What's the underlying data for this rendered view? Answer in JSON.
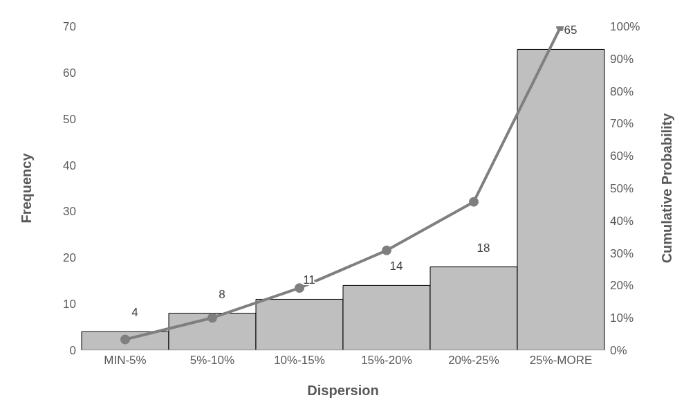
{
  "chart_data": {
    "type": "bar",
    "xlabel": "Dispersion",
    "ylabel": "Frequency",
    "y2label": "Cumulative Probability",
    "categories": [
      "MIN-5%",
      "5%-10%",
      "10%-15%",
      "15%-20%",
      "20%-25%",
      "25%-MORE"
    ],
    "series": [
      {
        "color": "#bfbfbf",
        "values": [
          4,
          8,
          11,
          14,
          18,
          65
        ],
        "value_labels": [
          "4",
          "8",
          "11",
          "14",
          "18",
          "65"
        ]
      },
      {
        "type": "line",
        "axis": "y2",
        "color": "#7f7f7f",
        "values": [
          3.3,
          10,
          19.2,
          30.8,
          45.8,
          100
        ]
      }
    ],
    "ylim": [
      0,
      70
    ],
    "yticks": [
      0,
      10,
      20,
      30,
      40,
      50,
      60,
      70
    ],
    "y2lim": [
      0,
      100
    ],
    "y2ticks": [
      {
        "value": 0,
        "label": "0%"
      },
      {
        "value": 10,
        "label": "10%"
      },
      {
        "value": 20,
        "label": "20%"
      },
      {
        "value": 30,
        "label": "30%"
      },
      {
        "value": 40,
        "label": "40%"
      },
      {
        "value": 50,
        "label": "50%"
      },
      {
        "value": 60,
        "label": "60%"
      },
      {
        "value": 70,
        "label": "70%"
      },
      {
        "value": 80,
        "label": "80%"
      },
      {
        "value": 90,
        "label": "90%"
      },
      {
        "value": 100,
        "label": "100%"
      }
    ],
    "marker": "circle",
    "line_style": "solid",
    "grid": false,
    "legend": false
  }
}
